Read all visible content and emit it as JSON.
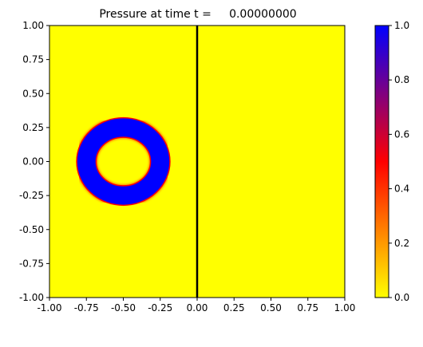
{
  "chart_data": [
    {
      "type": "heatmap",
      "title": "Pressure at time t =     0.00000000",
      "xlabel": "",
      "ylabel": "",
      "xlim": [
        -1.0,
        1.0
      ],
      "ylim": [
        -1.0,
        1.0
      ],
      "x_ticks": [
        "-1.00",
        "-0.75",
        "-0.50",
        "-0.25",
        "0.00",
        "0.25",
        "0.50",
        "0.75",
        "1.00"
      ],
      "y_ticks": [
        "1.00",
        "0.75",
        "0.50",
        "0.25",
        "0.00",
        "-0.25",
        "-0.50",
        "-0.75",
        "-1.00"
      ],
      "field": {
        "background_value": 0.0,
        "ring": {
          "center": [
            -0.5,
            0.0
          ],
          "inner_radius": 0.18,
          "outer_radius": 0.32,
          "value": 1.0
        }
      },
      "vertical_line_x": 0.0,
      "grid": false
    },
    {
      "type": "colorbar",
      "colormap": [
        "#ffff00",
        "#ff8000",
        "#ff0000",
        "#800080",
        "#0000ff"
      ],
      "range": [
        0.0,
        1.0
      ],
      "ticks": [
        "1.0",
        "0.8",
        "0.6",
        "0.4",
        "0.2",
        "0.0"
      ]
    }
  ],
  "colors": {
    "low": "#ffff00",
    "high": "#0000ff",
    "line": "#000000"
  }
}
